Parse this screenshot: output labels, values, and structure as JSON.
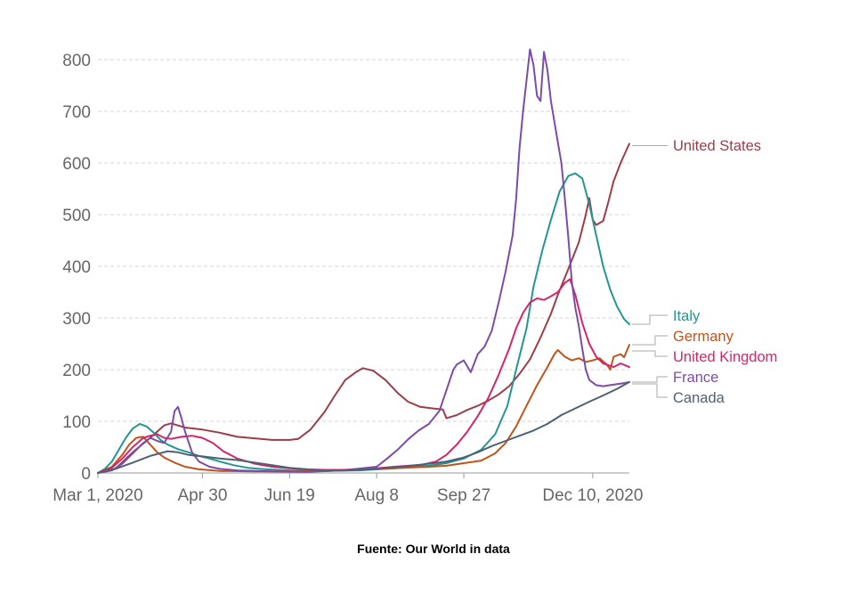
{
  "chart_data": {
    "type": "line",
    "title": "",
    "xlabel": "",
    "ylabel": "",
    "ylim": [
      0,
      820
    ],
    "yticks": [
      0,
      100,
      200,
      300,
      400,
      500,
      600,
      700,
      800
    ],
    "x_start": "Mar 1, 2020",
    "x_end": "Dec 10, 2020",
    "xticks": [
      {
        "day": 0,
        "label": "Mar 1, 2020"
      },
      {
        "day": 60,
        "label": "Apr 30"
      },
      {
        "day": 110,
        "label": "Jun 19"
      },
      {
        "day": 160,
        "label": "Aug 8"
      },
      {
        "day": 210,
        "label": "Sep 27"
      },
      {
        "day": 284,
        "label": "Dec 10, 2020"
      }
    ],
    "grid": true,
    "legend": "right, inline labels",
    "series": [
      {
        "name": "United States",
        "color": "#9c3d48",
        "points": [
          [
            0,
            0
          ],
          [
            10,
            8
          ],
          [
            20,
            40
          ],
          [
            30,
            68
          ],
          [
            38,
            92
          ],
          [
            42,
            96
          ],
          [
            50,
            88
          ],
          [
            60,
            84
          ],
          [
            70,
            78
          ],
          [
            80,
            70
          ],
          [
            90,
            67
          ],
          [
            100,
            64
          ],
          [
            110,
            64
          ],
          [
            115,
            66
          ],
          [
            122,
            84
          ],
          [
            130,
            118
          ],
          [
            136,
            150
          ],
          [
            142,
            180
          ],
          [
            148,
            195
          ],
          [
            152,
            203
          ],
          [
            158,
            198
          ],
          [
            165,
            180
          ],
          [
            172,
            155
          ],
          [
            178,
            138
          ],
          [
            185,
            128
          ],
          [
            192,
            125
          ],
          [
            198,
            123
          ],
          [
            200,
            106
          ],
          [
            206,
            112
          ],
          [
            212,
            122
          ],
          [
            218,
            130
          ],
          [
            224,
            140
          ],
          [
            230,
            152
          ],
          [
            236,
            168
          ],
          [
            242,
            192
          ],
          [
            248,
            220
          ],
          [
            254,
            262
          ],
          [
            260,
            308
          ],
          [
            264,
            345
          ],
          [
            270,
            395
          ],
          [
            276,
            446
          ],
          [
            280,
            500
          ],
          [
            282,
            532
          ],
          [
            284,
            490
          ],
          [
            286,
            480
          ],
          [
            290,
            488
          ],
          [
            293,
            525
          ],
          [
            296,
            565
          ],
          [
            300,
            600
          ],
          [
            304,
            630
          ],
          [
            305,
            637
          ]
        ]
      },
      {
        "name": "Italy",
        "color": "#22968f",
        "points": [
          [
            0,
            0
          ],
          [
            4,
            8
          ],
          [
            8,
            22
          ],
          [
            12,
            45
          ],
          [
            16,
            68
          ],
          [
            20,
            86
          ],
          [
            24,
            95
          ],
          [
            28,
            90
          ],
          [
            32,
            78
          ],
          [
            36,
            64
          ],
          [
            40,
            55
          ],
          [
            46,
            46
          ],
          [
            52,
            40
          ],
          [
            58,
            33
          ],
          [
            64,
            28
          ],
          [
            70,
            22
          ],
          [
            78,
            15
          ],
          [
            86,
            10
          ],
          [
            96,
            7
          ],
          [
            110,
            5
          ],
          [
            130,
            4
          ],
          [
            150,
            5
          ],
          [
            170,
            9
          ],
          [
            190,
            14
          ],
          [
            200,
            19
          ],
          [
            210,
            28
          ],
          [
            220,
            45
          ],
          [
            228,
            75
          ],
          [
            235,
            130
          ],
          [
            240,
            200
          ],
          [
            246,
            280
          ],
          [
            250,
            360
          ],
          [
            255,
            430
          ],
          [
            260,
            490
          ],
          [
            265,
            545
          ],
          [
            270,
            575
          ],
          [
            274,
            580
          ],
          [
            278,
            570
          ],
          [
            282,
            520
          ],
          [
            286,
            460
          ],
          [
            290,
            400
          ],
          [
            294,
            355
          ],
          [
            298,
            322
          ],
          [
            302,
            298
          ],
          [
            305,
            288
          ]
        ]
      },
      {
        "name": "Germany",
        "color": "#c1541b",
        "points": [
          [
            0,
            0
          ],
          [
            8,
            12
          ],
          [
            14,
            35
          ],
          [
            18,
            55
          ],
          [
            22,
            68
          ],
          [
            26,
            70
          ],
          [
            30,
            55
          ],
          [
            34,
            40
          ],
          [
            38,
            30
          ],
          [
            44,
            20
          ],
          [
            50,
            12
          ],
          [
            58,
            7
          ],
          [
            70,
            4
          ],
          [
            90,
            3
          ],
          [
            110,
            3
          ],
          [
            130,
            4
          ],
          [
            150,
            6
          ],
          [
            170,
            9
          ],
          [
            190,
            12
          ],
          [
            200,
            14
          ],
          [
            210,
            19
          ],
          [
            220,
            24
          ],
          [
            228,
            38
          ],
          [
            234,
            58
          ],
          [
            240,
            90
          ],
          [
            246,
            130
          ],
          [
            252,
            170
          ],
          [
            258,
            205
          ],
          [
            262,
            230
          ],
          [
            264,
            238
          ],
          [
            268,
            225
          ],
          [
            272,
            218
          ],
          [
            276,
            222
          ],
          [
            280,
            215
          ],
          [
            284,
            218
          ],
          [
            288,
            222
          ],
          [
            292,
            210
          ],
          [
            294,
            200
          ],
          [
            296,
            225
          ],
          [
            300,
            230
          ],
          [
            302,
            224
          ],
          [
            305,
            248
          ]
        ]
      },
      {
        "name": "United Kingdom",
        "color": "#d6246a",
        "points": [
          [
            0,
            0
          ],
          [
            8,
            10
          ],
          [
            14,
            28
          ],
          [
            20,
            50
          ],
          [
            26,
            68
          ],
          [
            30,
            72
          ],
          [
            34,
            75
          ],
          [
            38,
            68
          ],
          [
            42,
            66
          ],
          [
            48,
            70
          ],
          [
            54,
            72
          ],
          [
            60,
            68
          ],
          [
            66,
            58
          ],
          [
            72,
            42
          ],
          [
            80,
            28
          ],
          [
            90,
            18
          ],
          [
            100,
            12
          ],
          [
            110,
            9
          ],
          [
            120,
            7
          ],
          [
            130,
            6
          ],
          [
            140,
            6
          ],
          [
            150,
            7
          ],
          [
            160,
            9
          ],
          [
            170,
            12
          ],
          [
            178,
            14
          ],
          [
            186,
            16
          ],
          [
            194,
            22
          ],
          [
            200,
            35
          ],
          [
            206,
            55
          ],
          [
            212,
            80
          ],
          [
            218,
            110
          ],
          [
            224,
            145
          ],
          [
            230,
            190
          ],
          [
            236,
            240
          ],
          [
            240,
            280
          ],
          [
            244,
            310
          ],
          [
            248,
            330
          ],
          [
            252,
            338
          ],
          [
            256,
            335
          ],
          [
            260,
            342
          ],
          [
            264,
            350
          ],
          [
            268,
            368
          ],
          [
            271,
            375
          ],
          [
            274,
            345
          ],
          [
            278,
            290
          ],
          [
            282,
            250
          ],
          [
            286,
            225
          ],
          [
            290,
            212
          ],
          [
            296,
            205
          ],
          [
            300,
            212
          ],
          [
            305,
            205
          ]
        ]
      },
      {
        "name": "France",
        "color": "#7b4ca8",
        "points": [
          [
            0,
            0
          ],
          [
            8,
            5
          ],
          [
            14,
            18
          ],
          [
            20,
            38
          ],
          [
            26,
            58
          ],
          [
            30,
            68
          ],
          [
            34,
            62
          ],
          [
            38,
            58
          ],
          [
            42,
            80
          ],
          [
            44,
            120
          ],
          [
            46,
            128
          ],
          [
            48,
            105
          ],
          [
            50,
            80
          ],
          [
            54,
            40
          ],
          [
            58,
            22
          ],
          [
            64,
            12
          ],
          [
            70,
            8
          ],
          [
            80,
            5
          ],
          [
            100,
            3
          ],
          [
            120,
            2
          ],
          [
            140,
            5
          ],
          [
            160,
            12
          ],
          [
            166,
            28
          ],
          [
            172,
            45
          ],
          [
            178,
            65
          ],
          [
            184,
            82
          ],
          [
            190,
            95
          ],
          [
            196,
            120
          ],
          [
            200,
            160
          ],
          [
            204,
            200
          ],
          [
            206,
            210
          ],
          [
            210,
            218
          ],
          [
            214,
            195
          ],
          [
            218,
            230
          ],
          [
            222,
            245
          ],
          [
            226,
            275
          ],
          [
            230,
            330
          ],
          [
            234,
            390
          ],
          [
            238,
            460
          ],
          [
            240,
            530
          ],
          [
            242,
            630
          ],
          [
            244,
            700
          ],
          [
            246,
            760
          ],
          [
            248,
            820
          ],
          [
            250,
            790
          ],
          [
            252,
            730
          ],
          [
            254,
            720
          ],
          [
            256,
            815
          ],
          [
            258,
            780
          ],
          [
            260,
            720
          ],
          [
            262,
            680
          ],
          [
            264,
            640
          ],
          [
            266,
            600
          ],
          [
            268,
            530
          ],
          [
            270,
            455
          ],
          [
            272,
            370
          ],
          [
            274,
            320
          ],
          [
            276,
            285
          ],
          [
            278,
            240
          ],
          [
            280,
            200
          ],
          [
            282,
            180
          ],
          [
            286,
            170
          ],
          [
            290,
            168
          ],
          [
            294,
            170
          ],
          [
            298,
            172
          ],
          [
            302,
            174
          ],
          [
            305,
            176
          ]
        ]
      },
      {
        "name": "Canada",
        "color": "#4e6174",
        "points": [
          [
            0,
            0
          ],
          [
            10,
            8
          ],
          [
            20,
            20
          ],
          [
            30,
            33
          ],
          [
            40,
            42
          ],
          [
            46,
            40
          ],
          [
            52,
            35
          ],
          [
            60,
            32
          ],
          [
            70,
            28
          ],
          [
            80,
            25
          ],
          [
            90,
            20
          ],
          [
            100,
            15
          ],
          [
            110,
            10
          ],
          [
            120,
            7
          ],
          [
            130,
            5
          ],
          [
            140,
            5
          ],
          [
            150,
            6
          ],
          [
            160,
            8
          ],
          [
            170,
            11
          ],
          [
            180,
            14
          ],
          [
            190,
            18
          ],
          [
            200,
            22
          ],
          [
            210,
            30
          ],
          [
            218,
            40
          ],
          [
            226,
            52
          ],
          [
            234,
            62
          ],
          [
            242,
            72
          ],
          [
            250,
            82
          ],
          [
            258,
            95
          ],
          [
            266,
            112
          ],
          [
            274,
            125
          ],
          [
            282,
            138
          ],
          [
            290,
            150
          ],
          [
            298,
            163
          ],
          [
            305,
            176
          ]
        ]
      }
    ]
  },
  "label_texts": {
    "united_states": "United States",
    "italy": "Italy",
    "germany": "Germany",
    "united_kingdom": "United Kingdom",
    "france": "France",
    "canada": "Canada"
  },
  "source_text": "Fuente: Our World in data"
}
